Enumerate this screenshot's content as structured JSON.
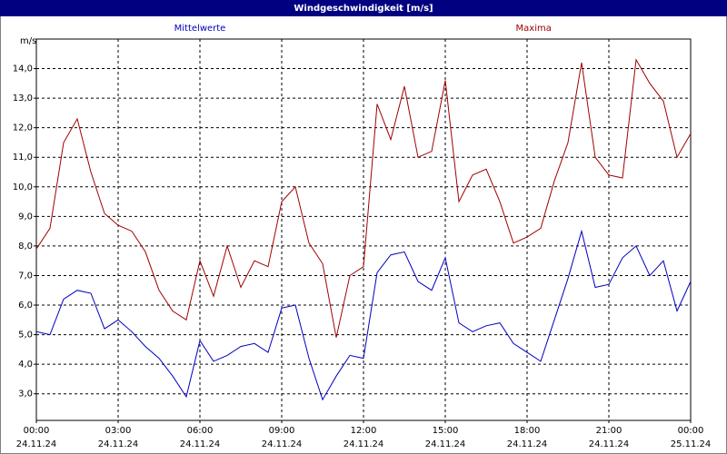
{
  "chart_data": {
    "type": "line",
    "title": "Windgeschwindigkeit [m/s]",
    "y_label": "m/s",
    "x": [
      0,
      0.5,
      1,
      1.5,
      2,
      2.5,
      3,
      3.5,
      4,
      4.5,
      5,
      5.5,
      6,
      6.5,
      7,
      7.5,
      8,
      8.5,
      9,
      9.5,
      10,
      10.5,
      11,
      11.5,
      12,
      12.5,
      13,
      13.5,
      14,
      14.5,
      15,
      15.5,
      16,
      16.5,
      17,
      17.5,
      18,
      18.5,
      19,
      19.5,
      20,
      20.5,
      21,
      21.5,
      22,
      22.5,
      23,
      23.5,
      24
    ],
    "series": [
      {
        "name": "Mittelwerte",
        "color": "#0000c0",
        "values": [
          5.1,
          5.0,
          6.2,
          6.5,
          6.4,
          5.2,
          5.5,
          5.1,
          4.6,
          4.2,
          3.6,
          2.9,
          4.8,
          4.1,
          4.3,
          4.6,
          4.7,
          4.4,
          5.9,
          6.0,
          4.2,
          2.8,
          3.6,
          4.3,
          4.2,
          7.1,
          7.7,
          7.8,
          6.8,
          6.5,
          7.6,
          5.4,
          5.1,
          5.3,
          5.4,
          4.7,
          4.4,
          4.1,
          5.5,
          6.9,
          8.5,
          6.6,
          6.7,
          7.6,
          8.0,
          7.0,
          7.5,
          5.8,
          6.8
        ]
      },
      {
        "name": "Maxima",
        "color": "#a00000",
        "values": [
          7.9,
          8.6,
          11.5,
          12.3,
          10.5,
          9.1,
          8.7,
          8.5,
          7.8,
          6.5,
          5.8,
          5.5,
          7.5,
          6.3,
          8.0,
          6.6,
          7.5,
          7.3,
          9.5,
          10.0,
          8.1,
          7.4,
          4.9,
          7.0,
          7.3,
          12.8,
          11.6,
          13.4,
          11.0,
          11.2,
          13.6,
          9.5,
          10.4,
          10.6,
          9.5,
          8.1,
          8.3,
          8.6,
          10.2,
          11.5,
          14.2,
          11.0,
          10.4,
          10.3,
          14.3,
          13.5,
          12.9,
          11.0,
          11.8
        ]
      }
    ],
    "xlim": [
      0,
      24
    ],
    "xticks": [
      {
        "value": 0,
        "label": "00:00"
      },
      {
        "value": 3,
        "label": "03:00"
      },
      {
        "value": 6,
        "label": "06:00"
      },
      {
        "value": 9,
        "label": "09:00"
      },
      {
        "value": 12,
        "label": "12:00"
      },
      {
        "value": 15,
        "label": "15:00"
      },
      {
        "value": 18,
        "label": "18:00"
      },
      {
        "value": 21,
        "label": "21:00"
      },
      {
        "value": 24,
        "label": "00:00"
      }
    ],
    "xtick_dates": [
      "24.11.24",
      "24.11.24",
      "24.11.24",
      "24.11.24",
      "24.11.24",
      "24.11.24",
      "24.11.24",
      "24.11.24",
      "25.11.24"
    ],
    "ylim": [
      2.1,
      15.0
    ],
    "yticks": [
      {
        "value": 3,
        "label": "3,0"
      },
      {
        "value": 4,
        "label": "4,0"
      },
      {
        "value": 5,
        "label": "5,0"
      },
      {
        "value": 6,
        "label": "6,0"
      },
      {
        "value": 7,
        "label": "7,0"
      },
      {
        "value": 8,
        "label": "8,0"
      },
      {
        "value": 9,
        "label": "9,0"
      },
      {
        "value": 10,
        "label": "10,0"
      },
      {
        "value": 11,
        "label": "11,0"
      },
      {
        "value": 12,
        "label": "12,0"
      },
      {
        "value": 13,
        "label": "13,0"
      },
      {
        "value": 14,
        "label": "14,0"
      }
    ],
    "grid": true
  }
}
